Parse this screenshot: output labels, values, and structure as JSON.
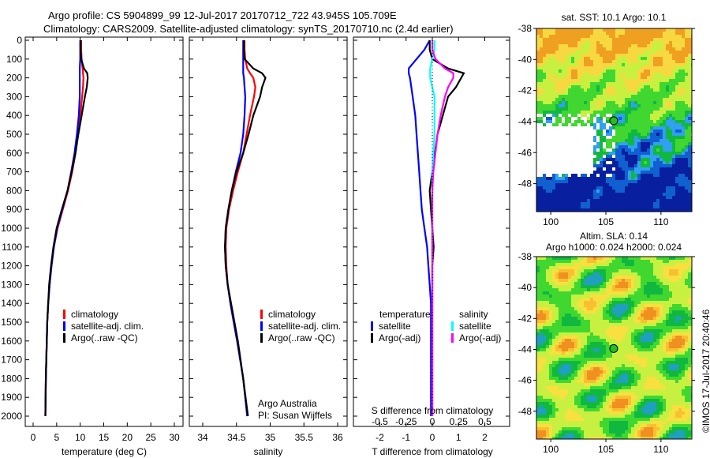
{
  "title_line1": "Argo profile: CS 5904899_99 12-Jul-2017 20170712_722 43.945S 105.709E",
  "title_line2": "Climatology: CARS2009. Satellite-adjusted climatology: synTS_20170710.nc (2.4d earlier)",
  "colors": {
    "climatology": "#ff0000",
    "satellite": "#0000ff",
    "argo": "#000000",
    "sal_satellite": "#00ffff",
    "sal_argo": "#ff00ff"
  },
  "chart_data": [
    {
      "type": "line",
      "name": "temperature-profile",
      "xlabel": "temperature (deg C)",
      "ylabel": "",
      "xlim": [
        -2,
        32
      ],
      "ylim": [
        2050,
        0
      ],
      "xticks": [
        "0",
        "5",
        "10",
        "15",
        "20",
        "25",
        "30"
      ],
      "xtick_values": [
        0,
        5,
        10,
        15,
        20,
        25,
        30
      ],
      "yticks": [
        "0",
        "100",
        "200",
        "300",
        "400",
        "500",
        "600",
        "700",
        "800",
        "900",
        "1000",
        "1100",
        "1200",
        "1300",
        "1400",
        "1500",
        "1600",
        "1700",
        "1800",
        "1900",
        "2000"
      ],
      "depth": [
        0,
        50,
        100,
        150,
        175,
        200,
        250,
        300,
        400,
        500,
        600,
        700,
        800,
        900,
        1000,
        1100,
        1200,
        1300,
        1400,
        1500,
        1600,
        1800,
        2000
      ],
      "series": [
        {
          "name": "climatology",
          "color": "#ff0000",
          "values": [
            10.2,
            10.2,
            10.3,
            10.5,
            10.6,
            10.7,
            10.6,
            10.4,
            10,
            9.5,
            9,
            8.3,
            7.4,
            6.3,
            5.2,
            4.4,
            3.9,
            3.5,
            3.2,
            3.0,
            2.9,
            2.7,
            2.6
          ]
        },
        {
          "name": "satellite-adj. clim.",
          "color": "#0000ff",
          "values": [
            10,
            10,
            10,
            9.9,
            9.9,
            9.9,
            9.9,
            9.9,
            9.7,
            9.3,
            8.8,
            8.1,
            7.3,
            6.2,
            5.1,
            4.4,
            3.9,
            3.5,
            3.2,
            3.0,
            2.9,
            2.7,
            2.6
          ]
        },
        {
          "name": "Argo(..raw -QC)",
          "color": "#000000",
          "values": [
            10.1,
            10.1,
            10.2,
            10.8,
            11.5,
            11.6,
            11.4,
            11.0,
            10.3,
            9.6,
            9.0,
            8.2,
            7.3,
            6.1,
            5.0,
            4.3,
            3.8,
            3.4,
            3.2,
            3.0,
            2.9,
            2.7,
            2.6
          ]
        }
      ]
    },
    {
      "type": "line",
      "name": "salinity-profile",
      "xlabel": "salinity",
      "xlim": [
        33.8,
        36.1
      ],
      "ylim": [
        2050,
        0
      ],
      "xticks": [
        "34",
        "34.5",
        "35",
        "35.5",
        "36"
      ],
      "xtick_values": [
        34,
        34.5,
        35,
        35.5,
        36
      ],
      "annotation": [
        "Argo Australia",
        "PI: Susan Wijffels"
      ],
      "depth": [
        0,
        50,
        100,
        150,
        175,
        200,
        250,
        300,
        400,
        500,
        600,
        700,
        800,
        900,
        1000,
        1100,
        1200,
        1300,
        1400,
        1500,
        1600,
        1800,
        2000
      ],
      "series": [
        {
          "name": "climatology",
          "color": "#ff0000",
          "values": [
            34.62,
            34.62,
            34.63,
            34.66,
            34.7,
            34.75,
            34.78,
            34.76,
            34.7,
            34.65,
            34.6,
            34.52,
            34.45,
            34.39,
            34.35,
            34.34,
            34.35,
            34.37,
            34.41,
            34.46,
            34.51,
            34.6,
            34.66
          ]
        },
        {
          "name": "satellite-adj. clim.",
          "color": "#0000ff",
          "values": [
            34.6,
            34.6,
            34.6,
            34.6,
            34.6,
            34.61,
            34.62,
            34.63,
            34.62,
            34.6,
            34.56,
            34.49,
            34.43,
            34.38,
            34.34,
            34.33,
            34.34,
            34.37,
            34.41,
            34.46,
            34.51,
            34.6,
            34.66
          ]
        },
        {
          "name": "Argo(..raw -QC)",
          "color": "#000000",
          "values": [
            34.61,
            34.61,
            34.62,
            34.75,
            34.88,
            34.93,
            34.88,
            34.85,
            34.75,
            34.68,
            34.6,
            34.5,
            34.43,
            34.38,
            34.34,
            34.33,
            34.34,
            34.37,
            34.42,
            34.47,
            34.52,
            34.6,
            34.67
          ]
        }
      ]
    },
    {
      "type": "line",
      "name": "difference-profile",
      "xlabel": "T difference from climatology",
      "x2label": "S difference from climatology",
      "xlim": [
        -3,
        3
      ],
      "ylim": [
        2050,
        0
      ],
      "xticks": [
        "-2",
        "-1",
        "0",
        "1",
        "2"
      ],
      "xtick_values": [
        -2,
        -1,
        0,
        1,
        2
      ],
      "x2ticks": [
        "-0.5",
        "-0.25",
        "0",
        "0.25",
        "0.5"
      ],
      "x2tick_values": [
        -0.5,
        -0.25,
        0,
        0.25,
        0.5
      ],
      "legend": {
        "temperature_title": "temperature",
        "salinity_title": "salinity",
        "t_sat": "satellite",
        "t_argo": "Argo(-adj)",
        "s_sat": "satellite",
        "s_argo": "Argo(-adj)"
      },
      "depth": [
        0,
        50,
        100,
        150,
        175,
        200,
        250,
        300,
        400,
        500,
        600,
        700,
        800,
        900,
        1000,
        1100,
        1200,
        1300,
        1400,
        1500,
        1600,
        1800,
        2000
      ],
      "series": [
        {
          "name": "T satellite",
          "axis": "T",
          "color": "#0000ff",
          "values": [
            -0.1,
            -0.3,
            -0.6,
            -0.9,
            -0.9,
            -0.85,
            -0.8,
            -0.75,
            -0.65,
            -0.6,
            -0.55,
            -0.5,
            -0.45,
            -0.4,
            -0.3,
            -0.2,
            -0.15,
            -0.1,
            -0.05,
            -0.05,
            -0.05,
            -0.05,
            -0.05
          ]
        },
        {
          "name": "T Argo(-adj)",
          "axis": "T",
          "color": "#000000",
          "values": [
            -0.1,
            -0.1,
            0,
            0.6,
            1.2,
            1.1,
            0.9,
            0.6,
            0.4,
            0.2,
            0.1,
            0,
            -0.1,
            -0.05,
            0,
            0.05,
            0,
            0,
            0,
            0,
            0,
            0,
            0
          ]
        },
        {
          "name": "S satellite",
          "axis": "S",
          "color": "#00ffff",
          "values": [
            0.02,
            0.02,
            0,
            -0.02,
            -0.02,
            -0.02,
            0,
            0.02,
            0.02,
            0.02,
            0.01,
            0,
            0,
            0,
            0,
            0,
            0,
            0,
            0,
            0,
            0,
            0,
            0
          ]
        },
        {
          "name": "S Argo(-adj)",
          "axis": "S",
          "color": "#ff00ff",
          "values": [
            0,
            0,
            0.03,
            0.12,
            0.2,
            0.2,
            0.15,
            0.12,
            0.08,
            0.05,
            0.03,
            0.01,
            0,
            0,
            0,
            0,
            0,
            0,
            0,
            0,
            0,
            0,
            0
          ]
        }
      ]
    },
    {
      "type": "heatmap",
      "name": "sst-map",
      "title": "sat. SST: 10.1  Argo: 10.1",
      "xlim": [
        98.7,
        112.8
      ],
      "ylim": [
        -49.8,
        -38
      ],
      "xticks": [
        "100",
        "105",
        "110"
      ],
      "xtick_values": [
        100,
        105,
        110
      ],
      "yticks": [
        "-38",
        "-40",
        "-42",
        "-44",
        "-46",
        "-48"
      ],
      "ytick_values": [
        -38,
        -40,
        -42,
        -44,
        -46,
        -48
      ],
      "marker": {
        "lon": 105.709,
        "lat": -43.945
      }
    },
    {
      "type": "heatmap",
      "name": "sla-map",
      "title1": "Altim. SLA: 0.14",
      "title2": "Argo h1000: 0.024 h2000: 0.024",
      "xlim": [
        98.7,
        112.8
      ],
      "ylim": [
        -49.8,
        -38
      ],
      "xticks": [
        "100",
        "105",
        "110"
      ],
      "xtick_values": [
        100,
        105,
        110
      ],
      "yticks": [
        "-38",
        "-40",
        "-42",
        "-44",
        "-46",
        "-48"
      ],
      "ytick_values": [
        -38,
        -40,
        -42,
        -44,
        -46,
        -48
      ],
      "marker": {
        "lon": 105.709,
        "lat": -43.945
      }
    }
  ],
  "legend_tsal": [
    "climatology",
    "satellite-adj. clim.",
    "Argo(..raw -QC)"
  ],
  "credit": "©IMOS 17-Jul-2017 20:40:46"
}
